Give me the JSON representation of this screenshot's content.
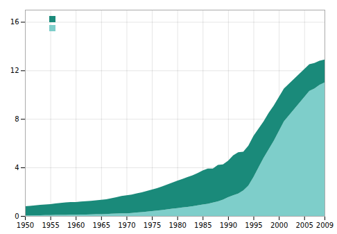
{
  "chart_data": {
    "type": "area",
    "stacked": true,
    "x": [
      1950,
      1951,
      1952,
      1953,
      1954,
      1955,
      1956,
      1957,
      1958,
      1959,
      1960,
      1961,
      1962,
      1963,
      1964,
      1965,
      1966,
      1967,
      1968,
      1969,
      1970,
      1971,
      1972,
      1973,
      1974,
      1975,
      1976,
      1977,
      1978,
      1979,
      1980,
      1981,
      1982,
      1983,
      1984,
      1985,
      1986,
      1987,
      1988,
      1989,
      1990,
      1991,
      1992,
      1993,
      1994,
      1995,
      1996,
      1997,
      1998,
      1999,
      2000,
      2001,
      2002,
      2003,
      2004,
      2005,
      2006,
      2007,
      2008,
      2009
    ],
    "series": [
      {
        "name": " ",
        "color": "#7ececa",
        "values": [
          0.05,
          0.05,
          0.06,
          0.06,
          0.07,
          0.07,
          0.08,
          0.08,
          0.09,
          0.1,
          0.1,
          0.11,
          0.12,
          0.13,
          0.14,
          0.15,
          0.16,
          0.18,
          0.2,
          0.22,
          0.22,
          0.24,
          0.28,
          0.32,
          0.36,
          0.4,
          0.44,
          0.48,
          0.54,
          0.6,
          0.65,
          0.7,
          0.75,
          0.8,
          0.88,
          0.95,
          1.0,
          1.1,
          1.2,
          1.35,
          1.55,
          1.7,
          1.85,
          2.1,
          2.5,
          3.2,
          4.0,
          4.8,
          5.5,
          6.2,
          7.0,
          7.8,
          8.3,
          8.8,
          9.3,
          9.8,
          10.3,
          10.5,
          10.8,
          11.0
        ]
      },
      {
        "name": " ",
        "color": "#1a8a7a",
        "values": [
          0.75,
          0.78,
          0.82,
          0.85,
          0.88,
          0.9,
          0.95,
          1.0,
          1.02,
          1.05,
          1.05,
          1.08,
          1.1,
          1.12,
          1.15,
          1.18,
          1.22,
          1.28,
          1.35,
          1.42,
          1.48,
          1.52,
          1.58,
          1.62,
          1.7,
          1.78,
          1.85,
          1.95,
          2.05,
          2.15,
          2.25,
          2.35,
          2.45,
          2.55,
          2.65,
          2.8,
          2.9,
          2.8,
          3.0,
          2.9,
          3.0,
          3.3,
          3.4,
          3.2,
          3.3,
          3.4,
          3.2,
          3.0,
          3.0,
          2.9,
          2.8,
          2.7,
          2.6,
          2.5,
          2.4,
          2.3,
          2.2,
          2.1,
          2.0,
          1.9
        ]
      }
    ],
    "xlim": [
      1950,
      2009
    ],
    "ylim": [
      0,
      17
    ],
    "xticks": [
      1950,
      1955,
      1960,
      1965,
      1970,
      1975,
      1980,
      1985,
      1990,
      1995,
      2000,
      2005,
      2009
    ],
    "yticks": [
      0,
      4,
      8,
      12,
      16
    ],
    "grid": true,
    "legend": "upper left"
  }
}
